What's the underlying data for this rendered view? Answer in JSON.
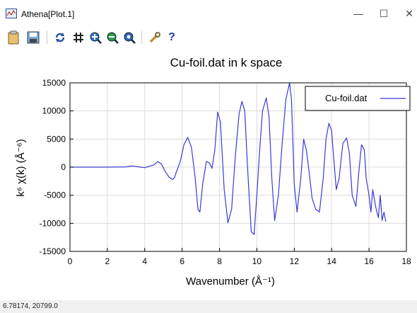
{
  "window": {
    "title": "Athena[Plot.1]",
    "controls": {
      "minimize": "—",
      "maximize": "☐",
      "close": "✕"
    }
  },
  "toolbar": {
    "icons": [
      "clipboard-icon",
      "save-icon",
      "refresh-icon",
      "grid-icon",
      "zoom-in-icon",
      "zoom-out-icon",
      "zoom-reset-icon",
      "settings-icon",
      "help-icon"
    ],
    "help_label": "?"
  },
  "status": {
    "coords": "6.78174,  20799.0"
  },
  "chart_data": {
    "type": "line",
    "title": "Cu-foil.dat in k space",
    "xlabel": "Wavenumber   (Å⁻¹)",
    "ylabel": "k⁶ χ(k)   (Å⁻⁶)",
    "xlim": [
      0,
      18
    ],
    "ylim": [
      -15000,
      15000
    ],
    "xticks": [
      "0",
      "2",
      "4",
      "6",
      "8",
      "10",
      "12",
      "14",
      "16",
      "18"
    ],
    "yticks": [
      "15000",
      "10000",
      "5000",
      "0",
      "-5000",
      "-10000",
      "-15000"
    ],
    "grid": true,
    "legend": "top-right",
    "line_color": "#3a3ad6",
    "series": [
      {
        "name": "Cu-foil.dat",
        "x": [
          0,
          1,
          2,
          3,
          3.3,
          3.5,
          3.7,
          4,
          4.2,
          4.5,
          4.7,
          4.9,
          5.1,
          5.3,
          5.5,
          5.6,
          5.7,
          5.9,
          6.1,
          6.3,
          6.5,
          6.7,
          6.85,
          6.95,
          7.1,
          7.3,
          7.45,
          7.6,
          7.75,
          7.9,
          8.05,
          8.25,
          8.45,
          8.65,
          8.85,
          9.05,
          9.2,
          9.35,
          9.5,
          9.7,
          9.85,
          10.0,
          10.15,
          10.3,
          10.5,
          10.65,
          10.8,
          10.95,
          11.15,
          11.35,
          11.55,
          11.75,
          11.85,
          12.0,
          12.15,
          12.35,
          12.5,
          12.65,
          12.8,
          12.95,
          13.15,
          13.35,
          13.55,
          13.7,
          13.85,
          14.0,
          14.1,
          14.25,
          14.4,
          14.6,
          14.8,
          14.95,
          15.1,
          15.3,
          15.45,
          15.6,
          15.75,
          15.85,
          16.0,
          16.1,
          16.2,
          16.35,
          16.5,
          16.6,
          16.7,
          16.8,
          16.9
        ],
        "y": [
          0,
          0,
          0,
          50,
          200,
          150,
          50,
          -100,
          100,
          400,
          1000,
          500,
          -800,
          -1800,
          -2200,
          -1800,
          -800,
          1000,
          4000,
          5300,
          3500,
          -2000,
          -7500,
          -8000,
          -3000,
          1000,
          800,
          -200,
          3000,
          9800,
          8000,
          -4000,
          -9900,
          -7500,
          2000,
          9500,
          11700,
          10000,
          0,
          -11500,
          -12000,
          -5000,
          3000,
          10000,
          12300,
          9000,
          -2000,
          -9500,
          -5000,
          4000,
          12000,
          15000,
          12000,
          -3000,
          -8000,
          -2000,
          5000,
          3000,
          -1000,
          -5500,
          -7500,
          -8000,
          -2000,
          5000,
          7800,
          6500,
          2000,
          -4000,
          -2000,
          4200,
          5200,
          2500,
          -5000,
          -7000,
          -1000,
          4000,
          3000,
          -2000,
          -5000,
          -8000,
          -4000,
          -7000,
          -9000,
          -5000,
          -9500,
          -8000,
          -9700
        ]
      }
    ]
  }
}
